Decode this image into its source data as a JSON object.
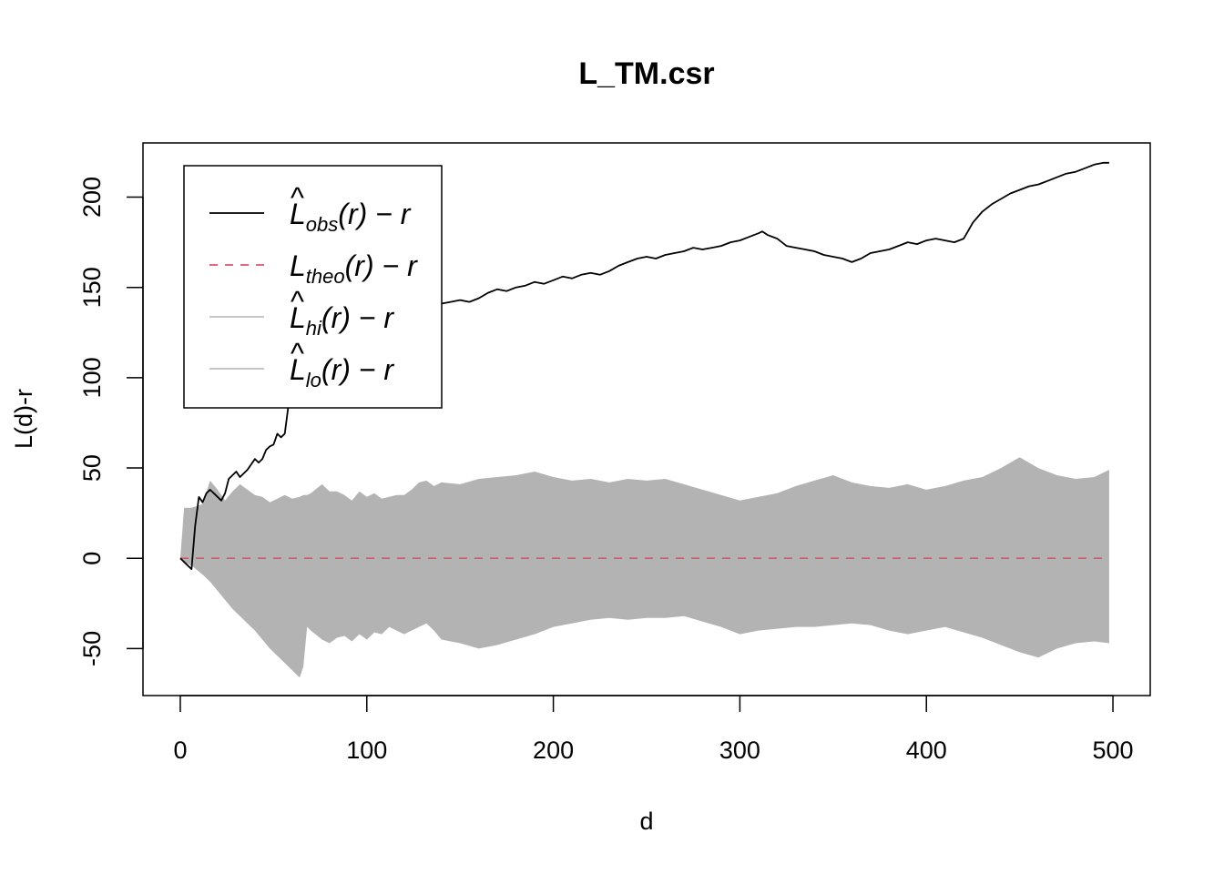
{
  "chart_data": {
    "type": "line",
    "title": "L_TM.csr",
    "xlabel": "d",
    "ylabel": "L(d)-r",
    "xlim": [
      -20,
      520
    ],
    "ylim": [
      -76,
      230
    ],
    "xticks": [
      0,
      100,
      200,
      300,
      400,
      500
    ],
    "yticks": [
      -50,
      0,
      50,
      100,
      150,
      200
    ],
    "grid": false,
    "legend_position": "top-left",
    "legend": [
      {
        "key": "obs",
        "base": "L",
        "hat": true,
        "sub": "obs",
        "suffix": "(r) − r",
        "style": "solid",
        "color": "#000000"
      },
      {
        "key": "theo",
        "base": "L",
        "hat": false,
        "sub": "theo",
        "suffix": "(r) − r",
        "style": "dashed",
        "color": "#DF536B"
      },
      {
        "key": "hi",
        "base": "L",
        "hat": true,
        "sub": "hi",
        "suffix": "(r) − r",
        "style": "solid",
        "color": "#BEBEBE"
      },
      {
        "key": "lo",
        "base": "L",
        "hat": true,
        "sub": "lo",
        "suffix": "(r) − r",
        "style": "solid",
        "color": "#BEBEBE"
      }
    ],
    "envelope": {
      "color": "#B3B3B3",
      "x": [
        0,
        2,
        6,
        12,
        16,
        20,
        24,
        28,
        32,
        36,
        40,
        44,
        48,
        52,
        56,
        60,
        64,
        66,
        68,
        70,
        76,
        80,
        84,
        88,
        92,
        96,
        100,
        104,
        108,
        112,
        116,
        120,
        124,
        128,
        132,
        136,
        140,
        150,
        160,
        170,
        180,
        190,
        200,
        210,
        220,
        230,
        240,
        250,
        260,
        270,
        280,
        290,
        300,
        310,
        320,
        330,
        340,
        350,
        360,
        370,
        380,
        390,
        400,
        410,
        420,
        430,
        440,
        450,
        460,
        470,
        480,
        490,
        498
      ],
      "hi": [
        0,
        28,
        28,
        30,
        43,
        38,
        32,
        37,
        41,
        38,
        35,
        34,
        31,
        33,
        35,
        33,
        34,
        35,
        35,
        36,
        41,
        37,
        37,
        35,
        32,
        37,
        34,
        36,
        33,
        34,
        35,
        35,
        38,
        42,
        43,
        40,
        42,
        41,
        44,
        45,
        46,
        48,
        45,
        43,
        44,
        42,
        44,
        43,
        44,
        41,
        38,
        35,
        32,
        34,
        36,
        40,
        43,
        46,
        42,
        40,
        39,
        41,
        38,
        40,
        43,
        45,
        50,
        56,
        50,
        46,
        44,
        45,
        49
      ],
      "lo": [
        0,
        -2,
        -4,
        -9,
        -13,
        -18,
        -23,
        -28,
        -32,
        -36,
        -40,
        -45,
        -50,
        -54,
        -58,
        -62,
        -66,
        -60,
        -38,
        -40,
        -45,
        -47,
        -44,
        -43,
        -46,
        -42,
        -45,
        -41,
        -42,
        -38,
        -40,
        -42,
        -40,
        -38,
        -36,
        -40,
        -45,
        -47,
        -50,
        -48,
        -45,
        -42,
        -38,
        -36,
        -34,
        -33,
        -34,
        -33,
        -33,
        -32,
        -35,
        -38,
        -42,
        -40,
        -39,
        -38,
        -38,
        -37,
        -36,
        -37,
        -40,
        -42,
        -40,
        -38,
        -41,
        -44,
        -48,
        -52,
        -55,
        -50,
        -47,
        -46,
        -47
      ]
    },
    "theo": {
      "x": [
        0,
        498
      ],
      "y": [
        0,
        0
      ]
    },
    "obs": {
      "x": [
        0,
        3,
        6,
        8,
        10,
        12,
        14,
        16,
        18,
        20,
        22,
        24,
        26,
        28,
        30,
        32,
        34,
        36,
        38,
        40,
        42,
        44,
        46,
        48,
        50,
        52,
        54,
        56,
        58,
        60,
        62,
        64,
        66,
        68,
        70,
        72,
        74,
        76,
        80,
        84,
        88,
        92,
        96,
        100,
        104,
        108,
        112,
        116,
        120,
        125,
        130,
        135,
        140,
        145,
        150,
        155,
        160,
        165,
        170,
        175,
        180,
        185,
        190,
        195,
        200,
        205,
        210,
        215,
        220,
        225,
        230,
        235,
        240,
        245,
        250,
        255,
        260,
        265,
        270,
        275,
        280,
        285,
        290,
        295,
        300,
        305,
        310,
        312,
        315,
        320,
        325,
        330,
        335,
        340,
        345,
        350,
        355,
        360,
        365,
        370,
        375,
        380,
        385,
        390,
        395,
        400,
        405,
        410,
        415,
        420,
        425,
        430,
        435,
        440,
        445,
        450,
        455,
        460,
        465,
        470,
        475,
        480,
        485,
        490,
        495,
        498
      ],
      "y": [
        0,
        -3,
        -6,
        18,
        34,
        31,
        36,
        38,
        36,
        34,
        32,
        36,
        44,
        46,
        48,
        45,
        47,
        49,
        52,
        55,
        53,
        55,
        60,
        62,
        63,
        69,
        67,
        69,
        85,
        98,
        110,
        115,
        112,
        114,
        116,
        118,
        119,
        118,
        121,
        119,
        124,
        120,
        126,
        122,
        130,
        132,
        131,
        127,
        129,
        131,
        134,
        138,
        141,
        142,
        143,
        142,
        144,
        147,
        149,
        148,
        150,
        151,
        153,
        152,
        154,
        156,
        155,
        157,
        158,
        157,
        159,
        162,
        164,
        166,
        167,
        166,
        168,
        169,
        170,
        172,
        171,
        172,
        173,
        175,
        176,
        178,
        180,
        181,
        179,
        177,
        173,
        172,
        171,
        170,
        168,
        167,
        166,
        164,
        166,
        169,
        170,
        171,
        173,
        175,
        174,
        176,
        177,
        176,
        175,
        177,
        186,
        192,
        196,
        199,
        202,
        204,
        206,
        207,
        209,
        211,
        213,
        214,
        216,
        218,
        219,
        219
      ]
    }
  }
}
